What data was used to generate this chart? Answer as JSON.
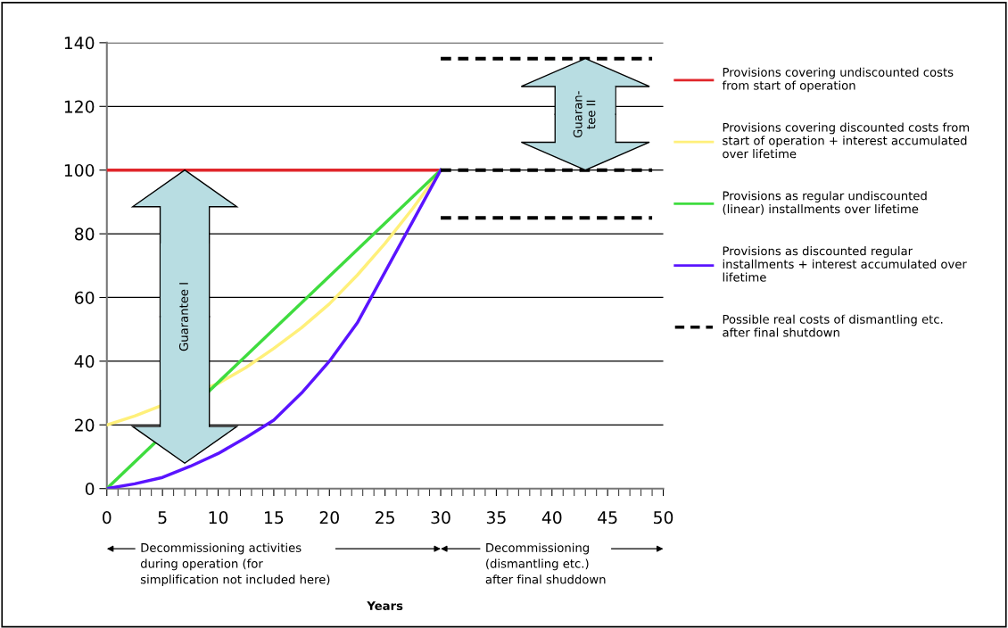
{
  "chart_data": {
    "type": "line",
    "xlim": [
      0,
      50
    ],
    "xticks": [
      0,
      5,
      10,
      15,
      20,
      25,
      30,
      35,
      40,
      45,
      50
    ],
    "ylim": [
      0,
      140
    ],
    "yticks": [
      0,
      20,
      40,
      60,
      80,
      100,
      120,
      140
    ],
    "grid": "y",
    "legend": "right",
    "marker": "none",
    "series": [
      {
        "name": "Provisions covering undiscounted costs\nfrom start of operation",
        "color": "#e0262b",
        "x": [
          0,
          30
        ],
        "values": [
          100,
          100
        ]
      },
      {
        "name": "Provisions covering discounted costs from\nstart of operation + interest accumulated\nover lifetime",
        "color": "#fff07a",
        "x": [
          0,
          2.5,
          10,
          12.5,
          15,
          17.5,
          20,
          22.5,
          25,
          27.5,
          30
        ],
        "values": [
          20,
          22.8,
          33,
          38,
          44,
          50.5,
          58,
          67,
          77,
          88,
          100
        ]
      },
      {
        "name": "Provisions as regular undiscounted\n(linear) installments over lifetime",
        "color": "#3fdc3f",
        "x": [
          0,
          30
        ],
        "values": [
          0,
          100
        ]
      },
      {
        "name": "Provisions as discounted regular\ninstallments + interest accumulated over\nlifetime",
        "color": "#5a14ff",
        "x": [
          0,
          2.5,
          5,
          7.5,
          10,
          12.5,
          15,
          17.5,
          20,
          22.5,
          25,
          27.5,
          30
        ],
        "values": [
          0,
          1.5,
          3.5,
          7,
          11,
          16,
          21.5,
          30,
          40,
          52,
          68,
          84,
          100
        ]
      },
      {
        "name": "Possible real costs of dismantling etc.\nafter final shutdown",
        "color": "#000000",
        "line_style": "dashed",
        "x": [
          30,
          49
        ],
        "values": [
          135,
          135
        ]
      },
      {
        "color": "#000000",
        "line_style": "dashed",
        "x": [
          30,
          49
        ],
        "values": [
          100,
          100
        ]
      },
      {
        "color": "#000000",
        "line_style": "dashed",
        "x": [
          30,
          49
        ],
        "values": [
          85,
          85
        ]
      }
    ],
    "annotations": [
      "Guarantee I",
      "Guaran-\ntee II",
      "Decommissioning activities\nduring operation (for\nsimplification not included here)",
      "Decommissioning\n(dismantling etc.)\nafter final shuddown",
      "Years"
    ]
  }
}
